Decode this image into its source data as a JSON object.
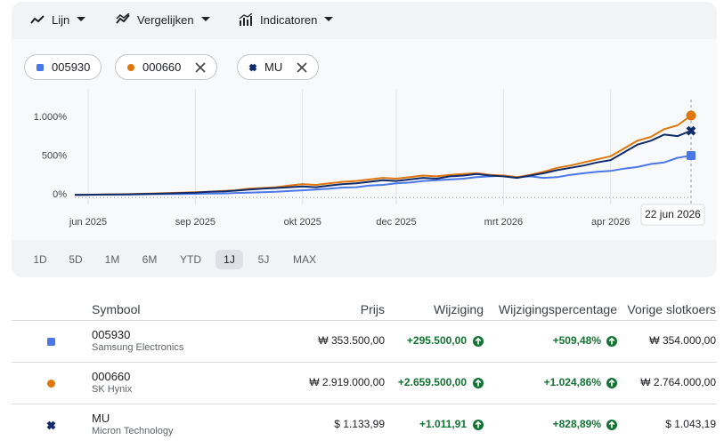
{
  "toolbar": [
    "Lijn",
    "Vergelijken",
    "Indicatoren"
  ],
  "chart_data": {
    "type": "line",
    "categories": [
      null,
      "jun 2025",
      null,
      null,
      null,
      null,
      null,
      null,
      null,
      "sep 2025",
      null,
      null,
      null,
      null,
      null,
      null,
      null,
      "okt 2025",
      null,
      null,
      null,
      null,
      null,
      null,
      "dec 2025",
      null,
      null,
      null,
      null,
      null,
      null,
      null,
      "mrt 2026",
      null,
      null,
      null,
      null,
      null,
      null,
      null,
      "apr 2026",
      null,
      null,
      null,
      null,
      null,
      null
    ],
    "series": [
      {
        "name": "005930",
        "color": "#4a78e8",
        "marker": "square",
        "removable": false,
        "values": [
          0,
          2,
          3,
          5,
          5,
          8,
          10,
          12,
          12,
          15,
          18,
          20,
          25,
          30,
          35,
          40,
          50,
          60,
          70,
          80,
          95,
          100,
          120,
          130,
          150,
          160,
          180,
          190,
          200,
          210,
          230,
          240,
          250,
          230,
          240,
          220,
          230,
          260,
          280,
          300,
          310,
          340,
          360,
          400,
          420,
          480,
          509
        ]
      },
      {
        "name": "000660",
        "color": "#e0760a",
        "marker": "circle",
        "removable": true,
        "values": [
          0,
          3,
          5,
          8,
          10,
          15,
          20,
          25,
          30,
          35,
          40,
          50,
          60,
          80,
          90,
          100,
          120,
          140,
          130,
          150,
          170,
          180,
          200,
          220,
          210,
          230,
          250,
          240,
          260,
          270,
          280,
          260,
          250,
          230,
          260,
          300,
          350,
          380,
          420,
          460,
          500,
          600,
          700,
          750,
          850,
          900,
          1025
        ]
      },
      {
        "name": "MU",
        "color": "#0f2b6b",
        "marker": "cross",
        "removable": true,
        "values": [
          0,
          2,
          4,
          6,
          8,
          12,
          15,
          20,
          25,
          30,
          40,
          45,
          55,
          70,
          80,
          90,
          100,
          110,
          100,
          120,
          140,
          150,
          170,
          190,
          180,
          200,
          220,
          210,
          240,
          250,
          270,
          250,
          240,
          220,
          250,
          280,
          320,
          350,
          380,
          420,
          450,
          550,
          650,
          700,
          780,
          760,
          829
        ]
      }
    ],
    "ylim": [
      -100,
      1370
    ],
    "yticks": [
      {
        "value": 0,
        "label": "0%"
      },
      {
        "value": 500,
        "label": "500%"
      },
      {
        "value": 1000,
        "label": "1.000%"
      }
    ],
    "hover_label": "22 jun 2026"
  },
  "range_buttons": [
    "1D",
    "5D",
    "1M",
    "6M",
    "YTD",
    "1J",
    "5J",
    "MAX"
  ],
  "selected_range": "1J",
  "table": {
    "columns": [
      "Symbool",
      "Prijs",
      "Wijziging",
      "Wijzigingspercentage",
      "Vorige slotkoers"
    ],
    "rows": [
      [
        "005930",
        "Samsung Electronics",
        "₩ 353.500,00",
        "+295.500,00",
        "+509,48%",
        "₩ 354.000,00"
      ],
      [
        "000660",
        "SK Hynix",
        "₩ 2.919.000,00",
        "+2.659.500,00",
        "+1.024,86%",
        "₩ 2.764.000,00"
      ],
      [
        "MU",
        "Micron Technology",
        "$ 1.133,99",
        "+1.011,91",
        "+828,89%",
        "$ 1.043,19"
      ]
    ]
  }
}
